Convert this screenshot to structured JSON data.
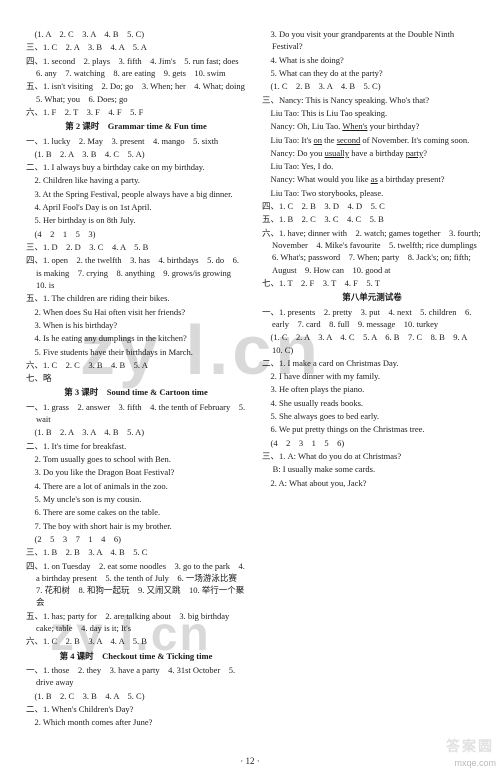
{
  "watermarks": {
    "wm1": "zy l.cn",
    "wm2": "zy l.cn",
    "wm3": "答案圆",
    "corner": "mxqe.com"
  },
  "footer": "· 12 ·",
  "lines": [
    {
      "t": "p",
      "v": "　(1. A　2. C　3. A　4. B　5. C)"
    },
    {
      "t": "p",
      "v": "三、1. C　2. A　3. B　4. A　5. A"
    },
    {
      "t": "p",
      "v": "四、1. second　2. plays　3. fifth　4. Jim's　5. run fast; does　6. any　7. watching　8. are eating　9. gets　10. swim"
    },
    {
      "t": "p",
      "v": "五、1. isn't visiting　2. Do; go　3. When; her　4. What; doing　5. What; you　6. Does; go"
    },
    {
      "t": "p",
      "v": "六、1. F　2. T　3. F　4. F　5. F"
    },
    {
      "t": "h",
      "v": "第 2 课时　Grammar time & Fun time"
    },
    {
      "t": "p",
      "v": "一、1. lucky　2. May　3. present　4. mango　5. sixth"
    },
    {
      "t": "p",
      "v": "　(1. B　2. A　3. B　4. C　5. A)"
    },
    {
      "t": "p",
      "v": "二、1. I always buy a birthday cake on my birthday."
    },
    {
      "t": "p",
      "v": "　2. Children like having a party."
    },
    {
      "t": "p",
      "v": "　3. At the Spring Festival, people always have a big dinner."
    },
    {
      "t": "p",
      "v": "　4. April Fool's Day is on 1st April."
    },
    {
      "t": "p",
      "v": "　5. Her birthday is on 8th July."
    },
    {
      "t": "p",
      "v": "　(4　2　1　5　3)"
    },
    {
      "t": "p",
      "v": "三、1. D　2. D　3. C　4. A　5. B"
    },
    {
      "t": "p",
      "v": "四、1. open　2. the twelfth　3. has　4. birthdays　5. do　6. is making　7. crying　8. anything　9. grows/is growing　10. is"
    },
    {
      "t": "p",
      "v": "五、1. The children are riding their bikes."
    },
    {
      "t": "p",
      "v": "　2. When does Su Hai often visit her friends?"
    },
    {
      "t": "p",
      "v": "　3. When is his birthday?"
    },
    {
      "t": "p",
      "v": "　4. Is he eating any dumplings in the kitchen?"
    },
    {
      "t": "p",
      "v": "　5. Five students have their birthdays in March."
    },
    {
      "t": "p",
      "v": "六、1. C　2. C　3. B　4. B　5. A"
    },
    {
      "t": "p",
      "v": "七、略"
    },
    {
      "t": "h",
      "v": "第 3 课时　Sound time & Cartoon time"
    },
    {
      "t": "p",
      "v": "一、1. grass　2. answer　3. fifth　4. the tenth of February　5. wait"
    },
    {
      "t": "p",
      "v": "　(1. B　2. A　3. A　4. B　5. A)"
    },
    {
      "t": "p",
      "v": "二、1. It's time for breakfast."
    },
    {
      "t": "p",
      "v": "　2. Tom usually goes to school with Ben."
    },
    {
      "t": "p",
      "v": "　3. Do you like the Dragon Boat Festival?"
    },
    {
      "t": "p",
      "v": "　4. There are a lot of animals in the zoo."
    },
    {
      "t": "p",
      "v": "　5. My uncle's son is my cousin."
    },
    {
      "t": "p",
      "v": "　6. There are some cakes on the table."
    },
    {
      "t": "p",
      "v": "　7. The boy with short hair is my brother."
    },
    {
      "t": "p",
      "v": "　(2　5　3　7　1　4　6)"
    },
    {
      "t": "p",
      "v": "三、1. B　2. B　3. A　4. B　5. C"
    },
    {
      "t": "p",
      "v": "四、1. on Tuesday　2. eat some noodles　3. go to the park　4. a birthday present　5. the tenth of July　6. 一场游泳比赛　7. 花和树　8. 和狗一起玩　9. 又闹又跳　10. 举行一个聚会"
    },
    {
      "t": "p",
      "v": "五、1. has; party for　2. are talking about　3. big birthday cake; table　4. day is it; It's"
    },
    {
      "t": "p",
      "v": "六、1. C　2. B　3. A　4. A　5. B"
    },
    {
      "t": "h",
      "v": "第 4 课时　Checkout time & Ticking time"
    },
    {
      "t": "p",
      "v": "一、1. those　2. they　3. have a party　4. 31st October　5. drive away"
    },
    {
      "t": "p",
      "v": "　(1. B　2. C　3. B　4. A　5. C)"
    },
    {
      "t": "p",
      "v": "二、1. When's Children's Day?"
    },
    {
      "t": "p",
      "v": "　2. Which month comes after June?"
    },
    {
      "t": "p",
      "v": "　3. Do you visit your grandparents at the Double Ninth Festival?"
    },
    {
      "t": "p",
      "v": "　4. What is she doing?"
    },
    {
      "t": "p",
      "v": "　5. What can they do at the party?"
    },
    {
      "t": "p",
      "v": "　(1. C　2. B　3. A　4. B　5. C)"
    },
    {
      "t": "p",
      "v": "三、Nancy: This is Nancy speaking. Who's that?"
    },
    {
      "t": "p",
      "v": "　Liu Tao: This is Liu Tao speaking."
    },
    {
      "t": "p",
      "v": "　Nancy: Oh, Liu Tao. <u>When's</u> your birthday?"
    },
    {
      "t": "p",
      "v": "　Liu Tao: It's <u>on</u> the <u>second</u> of November. It's coming soon."
    },
    {
      "t": "p",
      "v": "　Nancy: Do you <u>usually</u> have a birthday <u>party</u>?"
    },
    {
      "t": "p",
      "v": "　Liu Tao: Yes, I do."
    },
    {
      "t": "p",
      "v": "　Nancy: What would you like <u>as</u> a birthday present?"
    },
    {
      "t": "p",
      "v": "　Liu Tao: Two storybooks, please."
    },
    {
      "t": "p",
      "v": "四、1. C　2. B　3. D　4. D　5. C"
    },
    {
      "t": "p",
      "v": "五、1. B　2. C　3. C　4. C　5. B"
    },
    {
      "t": "p",
      "v": "六、1. have; dinner with　2. watch; games together　3. fourth; November　4. Mike's favourite　5. twelfth; rice dumplings　6. What's; password　7. When; party　8. Jack's; on; fifth; August　9. How can　10. good at"
    },
    {
      "t": "p",
      "v": "七、1. T　2. F　3. T　4. F　5. T"
    },
    {
      "t": "h",
      "v": "第八单元测试卷"
    },
    {
      "t": "p",
      "v": "一、1. presents　2. pretty　3. put　4. next　5. children　6. early　7. card　8. full　9. message　10. turkey"
    },
    {
      "t": "p",
      "v": "　(1. C　2. A　3. A　4. C　5. A　6. B　7. C　8. B　9. A　10. C)"
    },
    {
      "t": "p",
      "v": "二、1. I make a card on Christmas Day."
    },
    {
      "t": "p",
      "v": "　2. I have dinner with my family."
    },
    {
      "t": "p",
      "v": "　3. He often plays the piano."
    },
    {
      "t": "p",
      "v": "　4. She usually reads books."
    },
    {
      "t": "p",
      "v": "　5. She always goes to bed early."
    },
    {
      "t": "p",
      "v": "　6. We put pretty things on the Christmas tree."
    },
    {
      "t": "p",
      "v": "　(4　2　3　1　5　6)"
    },
    {
      "t": "p",
      "v": "三、1. A: What do you do at Christmas?"
    },
    {
      "t": "p",
      "v": "　   B: I usually make some cards."
    },
    {
      "t": "p",
      "v": "　2. A: What about you, Jack?"
    }
  ]
}
